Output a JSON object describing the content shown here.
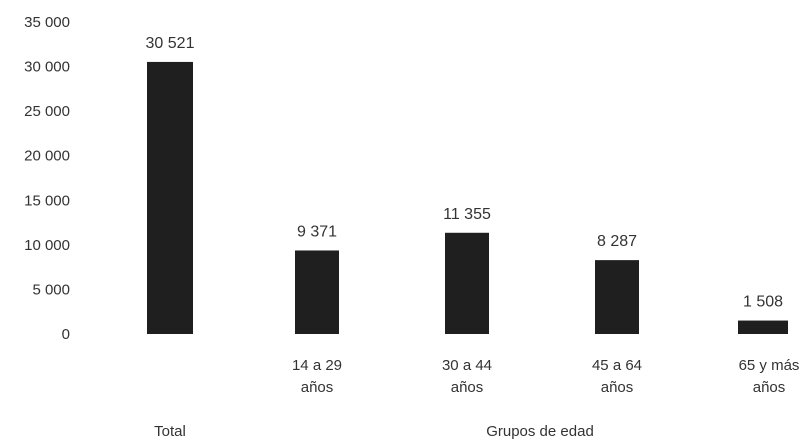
{
  "chart_data": {
    "type": "bar",
    "categories": [
      "Total",
      "14 a 29 años",
      "30 a 44 años",
      "45 a 64 años",
      "65 y más años"
    ],
    "category_lines": [
      [
        "Total"
      ],
      [
        "14 a 29",
        "años"
      ],
      [
        "30 a 44",
        "años"
      ],
      [
        "45 a 64",
        "años"
      ],
      [
        "65 y más",
        "años"
      ]
    ],
    "values": [
      30521,
      9371,
      11355,
      8287,
      1508
    ],
    "value_labels": [
      "30 521",
      "9 371",
      "11 355",
      "8 287",
      "1 508"
    ],
    "yticks": [
      0,
      5000,
      10000,
      15000,
      20000,
      25000,
      30000,
      35000
    ],
    "ytick_labels": [
      "0",
      "5 000",
      "10 000",
      "15 000",
      "20 000",
      "25 000",
      "30 000",
      "35 000"
    ],
    "ylim": [
      0,
      35000
    ],
    "group_labels": {
      "total": "Total",
      "age_groups": "Grupos de edad"
    },
    "title": "",
    "xlabel": "",
    "ylabel": "",
    "grid": false,
    "bar_color": "#1f1f1f"
  }
}
